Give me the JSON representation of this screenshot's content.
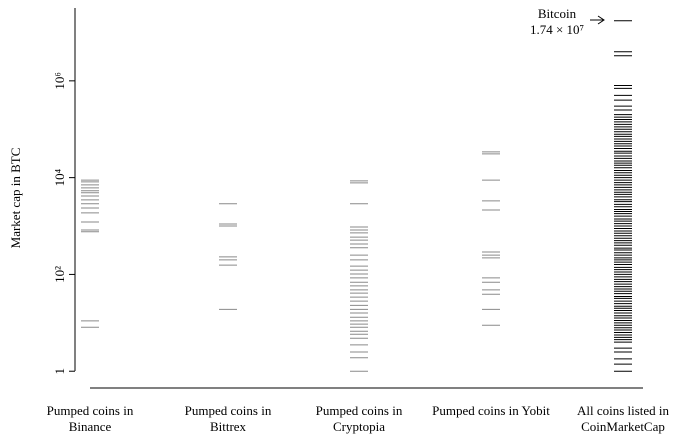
{
  "chart_data": {
    "type": "strip",
    "ylabel": "Market cap in BTC",
    "log_scale": true,
    "ylim": [
      0.45,
      32000000
    ],
    "yticks": [
      1,
      {
        "value": 100,
        "label": "10²"
      },
      {
        "value": 10000,
        "label": "10⁴"
      },
      {
        "value": 1000000,
        "label": "10⁶"
      }
    ],
    "categories": [
      "Pumped coins in Binance",
      "Pumped coins in Bittrex",
      "Pumped coins in Cryptopia",
      "Pumped coins in Yobit",
      "All coins listed in CoinMarketCap"
    ],
    "colors": [
      "#8a8a8a",
      "#8a8a8a",
      "#8a8a8a",
      "#8a8a8a",
      "#000000"
    ],
    "values": [
      [
        8900,
        8150,
        7100,
        6150,
        5360,
        4880,
        4180,
        3470,
        2880,
        2360,
        1870,
        1210,
        830,
        760,
        11,
        8.1
      ],
      [
        2880,
        1100,
        1000,
        230,
        200,
        156,
        19
      ],
      [
        8550,
        7800,
        2880,
        955,
        830,
        720,
        590,
        510,
        425,
        355,
        250,
        200,
        148,
        123,
        102,
        85,
        69,
        58,
        48,
        41,
        34,
        28,
        23,
        19,
        16,
        13,
        11,
        9.4,
        8.1,
        6.7,
        5.8,
        4.8,
        3.5,
        2.5,
        1.9,
        1
      ],
      [
        34000,
        31000,
        8900,
        3300,
        2150,
        290,
        250,
        220,
        85,
        69,
        48,
        39,
        19,
        8.9
      ],
      [
        17400000,
        4000000,
        3300000,
        800000,
        700000,
        500000,
        400000,
        300000,
        250000,
        200000,
        178000,
        159000,
        142000,
        126000,
        112000,
        100000,
        89000,
        79000,
        71000,
        63000,
        56000,
        50000,
        45000,
        40000,
        35000,
        32000,
        28000,
        25000,
        22000,
        20000,
        18000,
        16000,
        14000,
        12600,
        11200,
        10000,
        8900,
        7900,
        7100,
        6300,
        5600,
        5000,
        4500,
        4000,
        3500,
        3200,
        2800,
        2500,
        2200,
        2000,
        1800,
        1600,
        1400,
        1260,
        1120,
        1000,
        890,
        790,
        710,
        630,
        560,
        500,
        450,
        400,
        350,
        320,
        280,
        250,
        220,
        200,
        180,
        160,
        140,
        126,
        112,
        100,
        89,
        79,
        71,
        63,
        56,
        50,
        45,
        40,
        35,
        32,
        28,
        25,
        22,
        20,
        18,
        16,
        14,
        12.6,
        11.2,
        10,
        8.9,
        7.9,
        7.1,
        6.3,
        5.6,
        5,
        4.5,
        4,
        3,
        2.5,
        1.8,
        1.4,
        1
      ]
    ],
    "annotation": {
      "label": "Bitcoin",
      "value_label": "1.74 × 10⁷"
    }
  }
}
